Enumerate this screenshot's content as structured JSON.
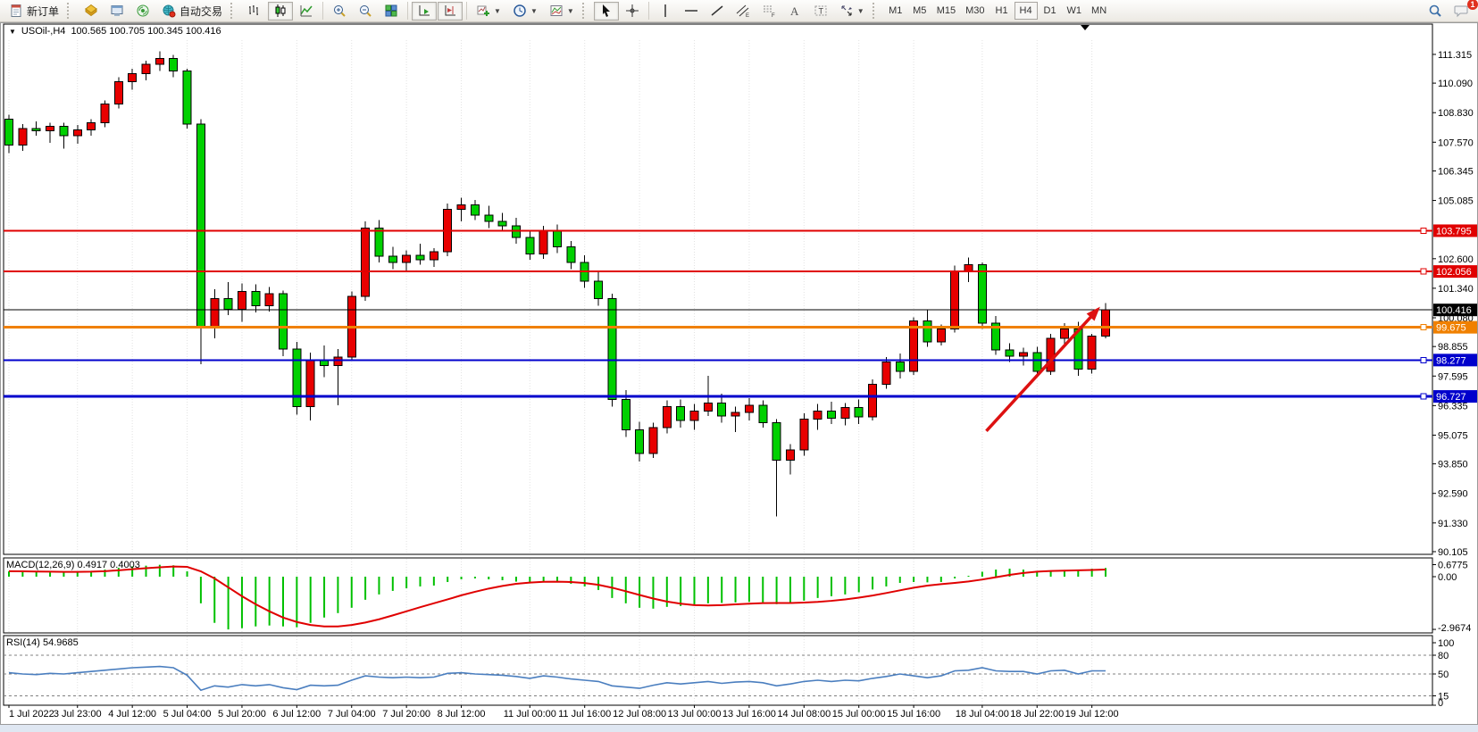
{
  "toolbar": {
    "new_order_label": "新订单",
    "auto_trading_label": "自动交易",
    "timeframes": [
      "M1",
      "M5",
      "M15",
      "M30",
      "H1",
      "H4",
      "D1",
      "W1",
      "MN"
    ],
    "active_timeframe": "H4",
    "chat_badge": "1",
    "icons": [
      "new-order-icon",
      "market-watch-icon",
      "data-window-icon",
      "navigator-icon",
      "auto-trading-icon",
      "chart-bars-icon",
      "chart-candles-icon",
      "chart-line-icon",
      "zoom-in-icon",
      "zoom-out-icon",
      "tile-windows-icon",
      "auto-scroll-icon",
      "chart-shift-icon",
      "indicators-icon",
      "periods-icon",
      "templates-icon",
      "cursor-icon",
      "crosshair-icon",
      "vertical-line-icon",
      "horizontal-line-icon",
      "trendline-icon",
      "channel-icon",
      "fibonacci-icon",
      "text-icon",
      "text-label-icon",
      "arrows-icon",
      "search-icon",
      "chat-icon"
    ]
  },
  "window": {
    "symbol_title": "USOil-,H4",
    "ohlc": "100.565  100.705  100.345  100.416",
    "collapse_glyph": "▼"
  },
  "chart_data": [
    {
      "type": "candlestick",
      "title": "USOil-,H4",
      "timeframe": "H4",
      "ohlc_display": "100.565 100.705 100.345 100.416",
      "up_color": "#e80000",
      "down_color": "#00d000",
      "wick_color": "#000000",
      "ylim": [
        89.99,
        111.96
      ],
      "y_ticks": [
        111.315,
        110.09,
        108.83,
        107.57,
        106.345,
        105.085,
        102.6,
        101.34,
        100.08,
        98.855,
        97.595,
        96.335,
        95.075,
        93.85,
        92.59,
        91.33,
        90.105
      ],
      "hlines": [
        {
          "price": 103.795,
          "color": "#e00000",
          "width": 2,
          "label": "103.795",
          "marker": true
        },
        {
          "price": 102.056,
          "color": "#e00000",
          "width": 2,
          "label": "102.056",
          "marker": true
        },
        {
          "price": 100.416,
          "color": "#000000",
          "width": 1,
          "label": "100.416",
          "marker": false
        },
        {
          "price": 99.675,
          "color": "#f08000",
          "width": 3,
          "label": "99.675",
          "marker": true
        },
        {
          "price": 98.277,
          "color": "#0000cc",
          "width": 2,
          "label": "98.277",
          "marker": true
        },
        {
          "price": 96.727,
          "color": "#0000cc",
          "width": 3,
          "label": "96.727",
          "marker": true
        }
      ],
      "time_labels": [
        {
          "index": 0,
          "label": "1 Jul 2022"
        },
        {
          "index": 5,
          "label": "3 Jul 23:00"
        },
        {
          "index": 9,
          "label": "4 Jul 12:00"
        },
        {
          "index": 13,
          "label": "5 Jul 04:00"
        },
        {
          "index": 17,
          "label": "5 Jul 20:00"
        },
        {
          "index": 21,
          "label": "6 Jul 12:00"
        },
        {
          "index": 25,
          "label": "7 Jul 04:00"
        },
        {
          "index": 29,
          "label": "7 Jul 20:00"
        },
        {
          "index": 33,
          "label": "8 Jul 12:00"
        },
        {
          "index": 38,
          "label": "11 Jul 00:00"
        },
        {
          "index": 42,
          "label": "11 Jul 16:00"
        },
        {
          "index": 46,
          "label": "12 Jul 08:00"
        },
        {
          "index": 50,
          "label": "13 Jul 00:00"
        },
        {
          "index": 54,
          "label": "13 Jul 16:00"
        },
        {
          "index": 58,
          "label": "14 Jul 08:00"
        },
        {
          "index": 62,
          "label": "15 Jul 00:00"
        },
        {
          "index": 66,
          "label": "15 Jul 16:00"
        },
        {
          "index": 71,
          "label": "18 Jul 04:00"
        },
        {
          "index": 75,
          "label": "18 Jul 22:00"
        },
        {
          "index": 79,
          "label": "19 Jul 12:00"
        }
      ],
      "annotation_arrow": {
        "from": {
          "bar": 71.3,
          "price": 95.25
        },
        "to": {
          "bar": 79.6,
          "price": 100.55
        },
        "color": "#dd1111"
      },
      "bars": [
        [
          108.55,
          108.75,
          107.1,
          107.45
        ],
        [
          107.45,
          108.35,
          107.2,
          108.15
        ],
        [
          108.15,
          108.45,
          107.85,
          108.05
        ],
        [
          108.05,
          108.4,
          107.55,
          108.25
        ],
        [
          108.25,
          108.4,
          107.3,
          107.85
        ],
        [
          107.85,
          108.3,
          107.5,
          108.1
        ],
        [
          108.1,
          108.55,
          107.85,
          108.4
        ],
        [
          108.4,
          109.35,
          108.2,
          109.2
        ],
        [
          109.2,
          110.35,
          109.0,
          110.15
        ],
        [
          110.15,
          110.7,
          109.8,
          110.5
        ],
        [
          110.5,
          111.05,
          110.2,
          110.9
        ],
        [
          110.9,
          111.45,
          110.6,
          111.15
        ],
        [
          111.15,
          111.3,
          110.35,
          110.6
        ],
        [
          110.6,
          110.7,
          108.15,
          108.35
        ],
        [
          108.35,
          108.55,
          98.1,
          99.7
        ],
        [
          99.7,
          101.3,
          99.2,
          100.9
        ],
        [
          100.9,
          101.6,
          100.2,
          100.45
        ],
        [
          100.45,
          101.55,
          99.9,
          101.2
        ],
        [
          101.2,
          101.5,
          100.3,
          100.6
        ],
        [
          100.6,
          101.4,
          100.35,
          101.1
        ],
        [
          101.1,
          101.25,
          98.45,
          98.75
        ],
        [
          98.75,
          99.05,
          95.95,
          96.3
        ],
        [
          96.3,
          98.6,
          95.7,
          98.3
        ],
        [
          98.3,
          98.9,
          97.55,
          98.05
        ],
        [
          98.05,
          98.75,
          96.35,
          98.4
        ],
        [
          98.4,
          101.2,
          98.3,
          101.0
        ],
        [
          101.0,
          104.2,
          100.8,
          103.9
        ],
        [
          103.9,
          104.25,
          102.45,
          102.7
        ],
        [
          102.7,
          103.1,
          102.15,
          102.45
        ],
        [
          102.45,
          102.95,
          102.05,
          102.75
        ],
        [
          102.75,
          103.25,
          102.35,
          102.55
        ],
        [
          102.55,
          103.05,
          102.25,
          102.9
        ],
        [
          102.9,
          104.95,
          102.7,
          104.7
        ],
        [
          104.7,
          105.2,
          104.2,
          104.9
        ],
        [
          104.9,
          105.1,
          104.25,
          104.45
        ],
        [
          104.45,
          104.85,
          103.9,
          104.2
        ],
        [
          104.2,
          104.55,
          103.75,
          104.0
        ],
        [
          104.0,
          104.35,
          103.25,
          103.5
        ],
        [
          103.5,
          103.8,
          102.55,
          102.8
        ],
        [
          102.8,
          104.0,
          102.6,
          103.8
        ],
        [
          103.8,
          104.05,
          102.85,
          103.1
        ],
        [
          103.1,
          103.35,
          102.15,
          102.45
        ],
        [
          102.45,
          102.75,
          101.35,
          101.65
        ],
        [
          101.65,
          102.05,
          100.6,
          100.9
        ],
        [
          100.9,
          101.1,
          96.3,
          96.6
        ],
        [
          96.6,
          97.0,
          95.0,
          95.3
        ],
        [
          95.3,
          95.65,
          93.95,
          94.3
        ],
        [
          94.3,
          95.6,
          94.1,
          95.4
        ],
        [
          95.4,
          96.55,
          95.15,
          96.3
        ],
        [
          96.3,
          96.6,
          95.4,
          95.7
        ],
        [
          95.7,
          96.4,
          95.3,
          96.1
        ],
        [
          96.1,
          97.6,
          95.9,
          96.45
        ],
        [
          96.45,
          96.85,
          95.6,
          95.9
        ],
        [
          95.9,
          96.3,
          95.2,
          96.05
        ],
        [
          96.05,
          96.65,
          95.7,
          96.35
        ],
        [
          96.35,
          96.55,
          95.4,
          95.6
        ],
        [
          95.6,
          95.75,
          91.6,
          94.0
        ],
        [
          94.0,
          94.7,
          93.4,
          94.45
        ],
        [
          94.45,
          96.0,
          94.2,
          95.75
        ],
        [
          95.75,
          96.4,
          95.3,
          96.1
        ],
        [
          96.1,
          96.5,
          95.55,
          95.8
        ],
        [
          95.8,
          96.45,
          95.5,
          96.25
        ],
        [
          96.25,
          96.6,
          95.55,
          95.85
        ],
        [
          95.85,
          97.45,
          95.7,
          97.25
        ],
        [
          97.25,
          98.4,
          97.05,
          98.2
        ],
        [
          98.2,
          98.55,
          97.5,
          97.8
        ],
        [
          97.8,
          100.1,
          97.65,
          99.95
        ],
        [
          99.95,
          100.4,
          98.85,
          99.05
        ],
        [
          99.05,
          99.8,
          98.9,
          99.6
        ],
        [
          99.6,
          102.3,
          99.45,
          102.05
        ],
        [
          102.05,
          102.65,
          101.6,
          102.35
        ],
        [
          102.35,
          102.45,
          99.6,
          99.85
        ],
        [
          99.85,
          100.15,
          98.5,
          98.7
        ],
        [
          98.7,
          99.0,
          98.2,
          98.45
        ],
        [
          98.45,
          98.8,
          98.05,
          98.6
        ],
        [
          98.6,
          98.85,
          97.55,
          97.8
        ],
        [
          97.8,
          99.4,
          97.65,
          99.2
        ],
        [
          99.2,
          99.85,
          98.9,
          99.6
        ],
        [
          99.6,
          99.9,
          97.6,
          97.9
        ],
        [
          97.9,
          99.4,
          97.7,
          99.3
        ],
        [
          99.3,
          100.7,
          99.2,
          100.42
        ]
      ]
    },
    {
      "type": "macd",
      "label": "MACD(12,26,9) 0.4917 0.4003",
      "params": "12,26,9",
      "main_value": 0.4917,
      "signal_value": 0.4003,
      "hist_color": "#00c000",
      "signal_color": "#e00000",
      "ymax": 0.6775,
      "ymin": -2.9674,
      "axis_labels": [
        {
          "text": "0.6775",
          "value": 0.6775
        },
        {
          "text": "0.00",
          "value": 0.0
        },
        {
          "text": "-2.9674",
          "value": -2.9674
        }
      ],
      "hist": [
        0.3,
        0.28,
        0.26,
        0.24,
        0.26,
        0.29,
        0.33,
        0.4,
        0.5,
        0.58,
        0.62,
        0.67,
        0.64,
        0.3,
        -1.5,
        -2.6,
        -2.97,
        -2.9,
        -2.8,
        -2.75,
        -2.8,
        -2.85,
        -2.6,
        -2.3,
        -2.05,
        -1.75,
        -1.3,
        -1.0,
        -0.8,
        -0.65,
        -0.55,
        -0.5,
        -0.3,
        -0.15,
        -0.1,
        -0.15,
        -0.2,
        -0.28,
        -0.35,
        -0.28,
        -0.3,
        -0.4,
        -0.55,
        -0.75,
        -1.2,
        -1.5,
        -1.75,
        -1.8,
        -1.7,
        -1.65,
        -1.6,
        -1.5,
        -1.48,
        -1.45,
        -1.42,
        -1.45,
        -1.55,
        -1.5,
        -1.35,
        -1.2,
        -1.1,
        -1.0,
        -0.88,
        -0.72,
        -0.55,
        -0.35,
        -0.3,
        -0.32,
        -0.3,
        -0.1,
        0.05,
        0.28,
        0.4,
        0.45,
        0.4,
        0.3,
        0.32,
        0.38,
        0.35,
        0.45,
        0.49
      ],
      "signal": [
        0.31,
        0.3,
        0.29,
        0.28,
        0.27,
        0.27,
        0.28,
        0.31,
        0.36,
        0.42,
        0.48,
        0.53,
        0.57,
        0.55,
        0.3,
        -0.1,
        -0.6,
        -1.1,
        -1.55,
        -1.95,
        -2.3,
        -2.55,
        -2.72,
        -2.8,
        -2.8,
        -2.72,
        -2.58,
        -2.4,
        -2.18,
        -1.95,
        -1.72,
        -1.5,
        -1.28,
        -1.05,
        -0.85,
        -0.67,
        -0.52,
        -0.4,
        -0.33,
        -0.29,
        -0.28,
        -0.3,
        -0.36,
        -0.46,
        -0.62,
        -0.82,
        -1.03,
        -1.23,
        -1.4,
        -1.52,
        -1.6,
        -1.62,
        -1.6,
        -1.56,
        -1.52,
        -1.49,
        -1.48,
        -1.48,
        -1.46,
        -1.42,
        -1.36,
        -1.28,
        -1.18,
        -1.06,
        -0.92,
        -0.77,
        -0.62,
        -0.5,
        -0.42,
        -0.35,
        -0.27,
        -0.16,
        -0.03,
        0.1,
        0.21,
        0.28,
        0.32,
        0.34,
        0.36,
        0.38,
        0.4
      ]
    },
    {
      "type": "rsi",
      "label": "RSI(14) 54.9685",
      "period": 14,
      "value": 54.9685,
      "color": "#4a7ebf",
      "levels": [
        80,
        50,
        15
      ],
      "axis_labels": [
        {
          "text": "100",
          "value": 100
        },
        {
          "text": "80",
          "value": 80
        },
        {
          "text": "50",
          "value": 50
        },
        {
          "text": "15",
          "value": 15
        },
        {
          "text": "0",
          "value": 0
        }
      ],
      "values": [
        52,
        50,
        49,
        51,
        50,
        52,
        54,
        56,
        58,
        60,
        61,
        62,
        60,
        48,
        24,
        31,
        29,
        33,
        31,
        33,
        28,
        25,
        32,
        31,
        32,
        40,
        47,
        45,
        44,
        45,
        44,
        45,
        51,
        52,
        50,
        49,
        48,
        46,
        43,
        47,
        45,
        42,
        40,
        38,
        31,
        29,
        27,
        32,
        36,
        34,
        36,
        38,
        35,
        37,
        38,
        36,
        31,
        34,
        38,
        40,
        38,
        40,
        39,
        43,
        46,
        50,
        47,
        44,
        47,
        55,
        56,
        60,
        55,
        54,
        54,
        50,
        55,
        56,
        50,
        55,
        55
      ]
    }
  ]
}
